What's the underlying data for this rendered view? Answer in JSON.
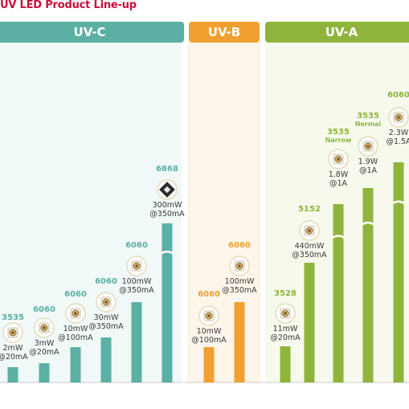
{
  "title": "UV LED Product Line-up",
  "colors": {
    "title": "#c8103c",
    "uvc": "#5bb0a3",
    "uvb": "#f0a030",
    "uva": "#8fb43c",
    "uvc_bg": "#f0f8f8",
    "uvb_bg": "#fdf5ea",
    "uva_bg": "#f6f9ec",
    "icon_frame": "#e8e3c8"
  },
  "categories": [
    {
      "id": "uvc",
      "label": "UV-C"
    },
    {
      "id": "uvb",
      "label": "UV-B"
    },
    {
      "id": "uva",
      "label": "UV-A"
    }
  ],
  "chart_data": {
    "type": "bar",
    "title": "UV LED Product Line-up",
    "products": [
      {
        "category": "UV-C",
        "package": "3535",
        "power": "2mW",
        "current": "@20mA",
        "icon": "led-package-icon"
      },
      {
        "category": "UV-C",
        "package": "6060",
        "power": "3mW",
        "current": "@20mA",
        "icon": "led-package-icon"
      },
      {
        "category": "UV-C",
        "package": "6060",
        "power": "10mW",
        "current": "@100mA",
        "icon": "led-package-icon"
      },
      {
        "category": "UV-C",
        "package": "6060",
        "power": "30mW",
        "current": "@350mA",
        "icon": "led-package-icon"
      },
      {
        "category": "UV-C",
        "package": "6060",
        "power": "100mW",
        "current": "@350mA",
        "icon": "led-package-icon"
      },
      {
        "category": "UV-C",
        "package": "6868",
        "power": "300mW",
        "current": "@350mA",
        "icon": "multi-chip-led-icon",
        "axis_break": true
      },
      {
        "category": "UV-B",
        "package": "6060",
        "power": "10mW",
        "current": "@100mA",
        "icon": "led-package-icon"
      },
      {
        "category": "UV-B",
        "package": "6060",
        "power": "100mW",
        "current": "@350mA",
        "icon": "led-package-icon"
      },
      {
        "category": "UV-A",
        "package": "3528",
        "power": "11mW",
        "current": "@20mA",
        "icon": "led-package-icon"
      },
      {
        "category": "UV-A",
        "package": "5152",
        "power": "440mW",
        "current": "@350mA",
        "icon": "led-package-icon"
      },
      {
        "category": "UV-A",
        "package": "3535",
        "subtitle": "Narrow",
        "power": "1.8W",
        "current": "@1A",
        "icon": "led-package-icon",
        "axis_break": true
      },
      {
        "category": "UV-A",
        "package": "3535",
        "subtitle": "Normal",
        "power": "1.9W",
        "current": "@1A",
        "icon": "led-package-icon",
        "axis_break": true
      },
      {
        "category": "UV-A",
        "package": "6060",
        "power": "2.3W",
        "current": "@1.5A",
        "icon": "led-package-icon",
        "axis_break": true
      }
    ]
  }
}
